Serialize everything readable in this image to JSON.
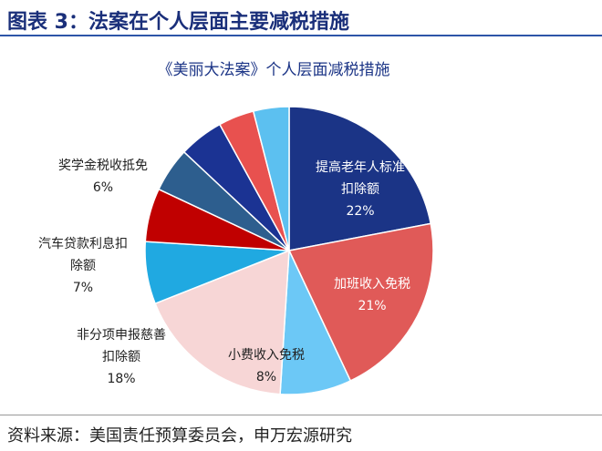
{
  "figure_title": "图表 3：法案在个人层面主要减税措施",
  "source": "资料来源：美国责任预算委员会，申万宏源研究",
  "chart_data": {
    "type": "pie",
    "title": "《美丽大法案》个人层面减税措施",
    "categories": [
      "提高老年人标准扣除额",
      "加班收入免税",
      "小费收入免税",
      "非分项申报慈善扣除额",
      "汽车贷款利息扣除额",
      "奖学金税收抵免",
      null,
      null,
      null,
      null
    ],
    "values": [
      22,
      21,
      8,
      18,
      7,
      6,
      5,
      5,
      4,
      4
    ],
    "value_labels": [
      "22%",
      "21%",
      "8%",
      "18%",
      "7%",
      "6%",
      null,
      null,
      null,
      null
    ],
    "colors": [
      "#1b3486",
      "#e05a58",
      "#6cc8f6",
      "#f7d6d6",
      "#20a9e1",
      "#c00000",
      "#2d5e8e",
      "#1b3393",
      "#e8514f",
      "#5cc0f0",
      "#f8d2d2"
    ]
  }
}
